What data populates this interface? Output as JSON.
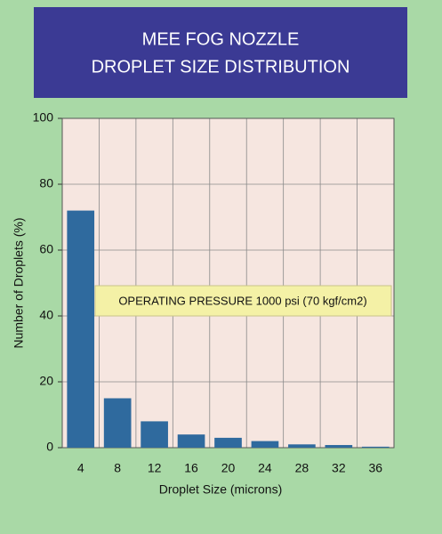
{
  "chart_data": {
    "type": "bar",
    "title_lines": [
      "MEE FOG NOZZLE",
      "DROPLET SIZE DISTRIBUTION"
    ],
    "annotation": "OPERATING PRESSURE 1000 psi (70 kgf/cm2)",
    "x_label": "Droplet Size  (microns)",
    "y_label": "Number of Droplets (%)",
    "categories": [
      "4",
      "8",
      "12",
      "16",
      "20",
      "24",
      "28",
      "32",
      "36"
    ],
    "values": [
      72,
      15,
      8,
      4,
      3,
      2,
      1,
      0.8,
      0.3
    ],
    "color": "#2f6a9e",
    "ylim": [
      0,
      100
    ],
    "yticks": [
      0,
      20,
      40,
      60,
      80,
      100
    ],
    "grid": true
  }
}
